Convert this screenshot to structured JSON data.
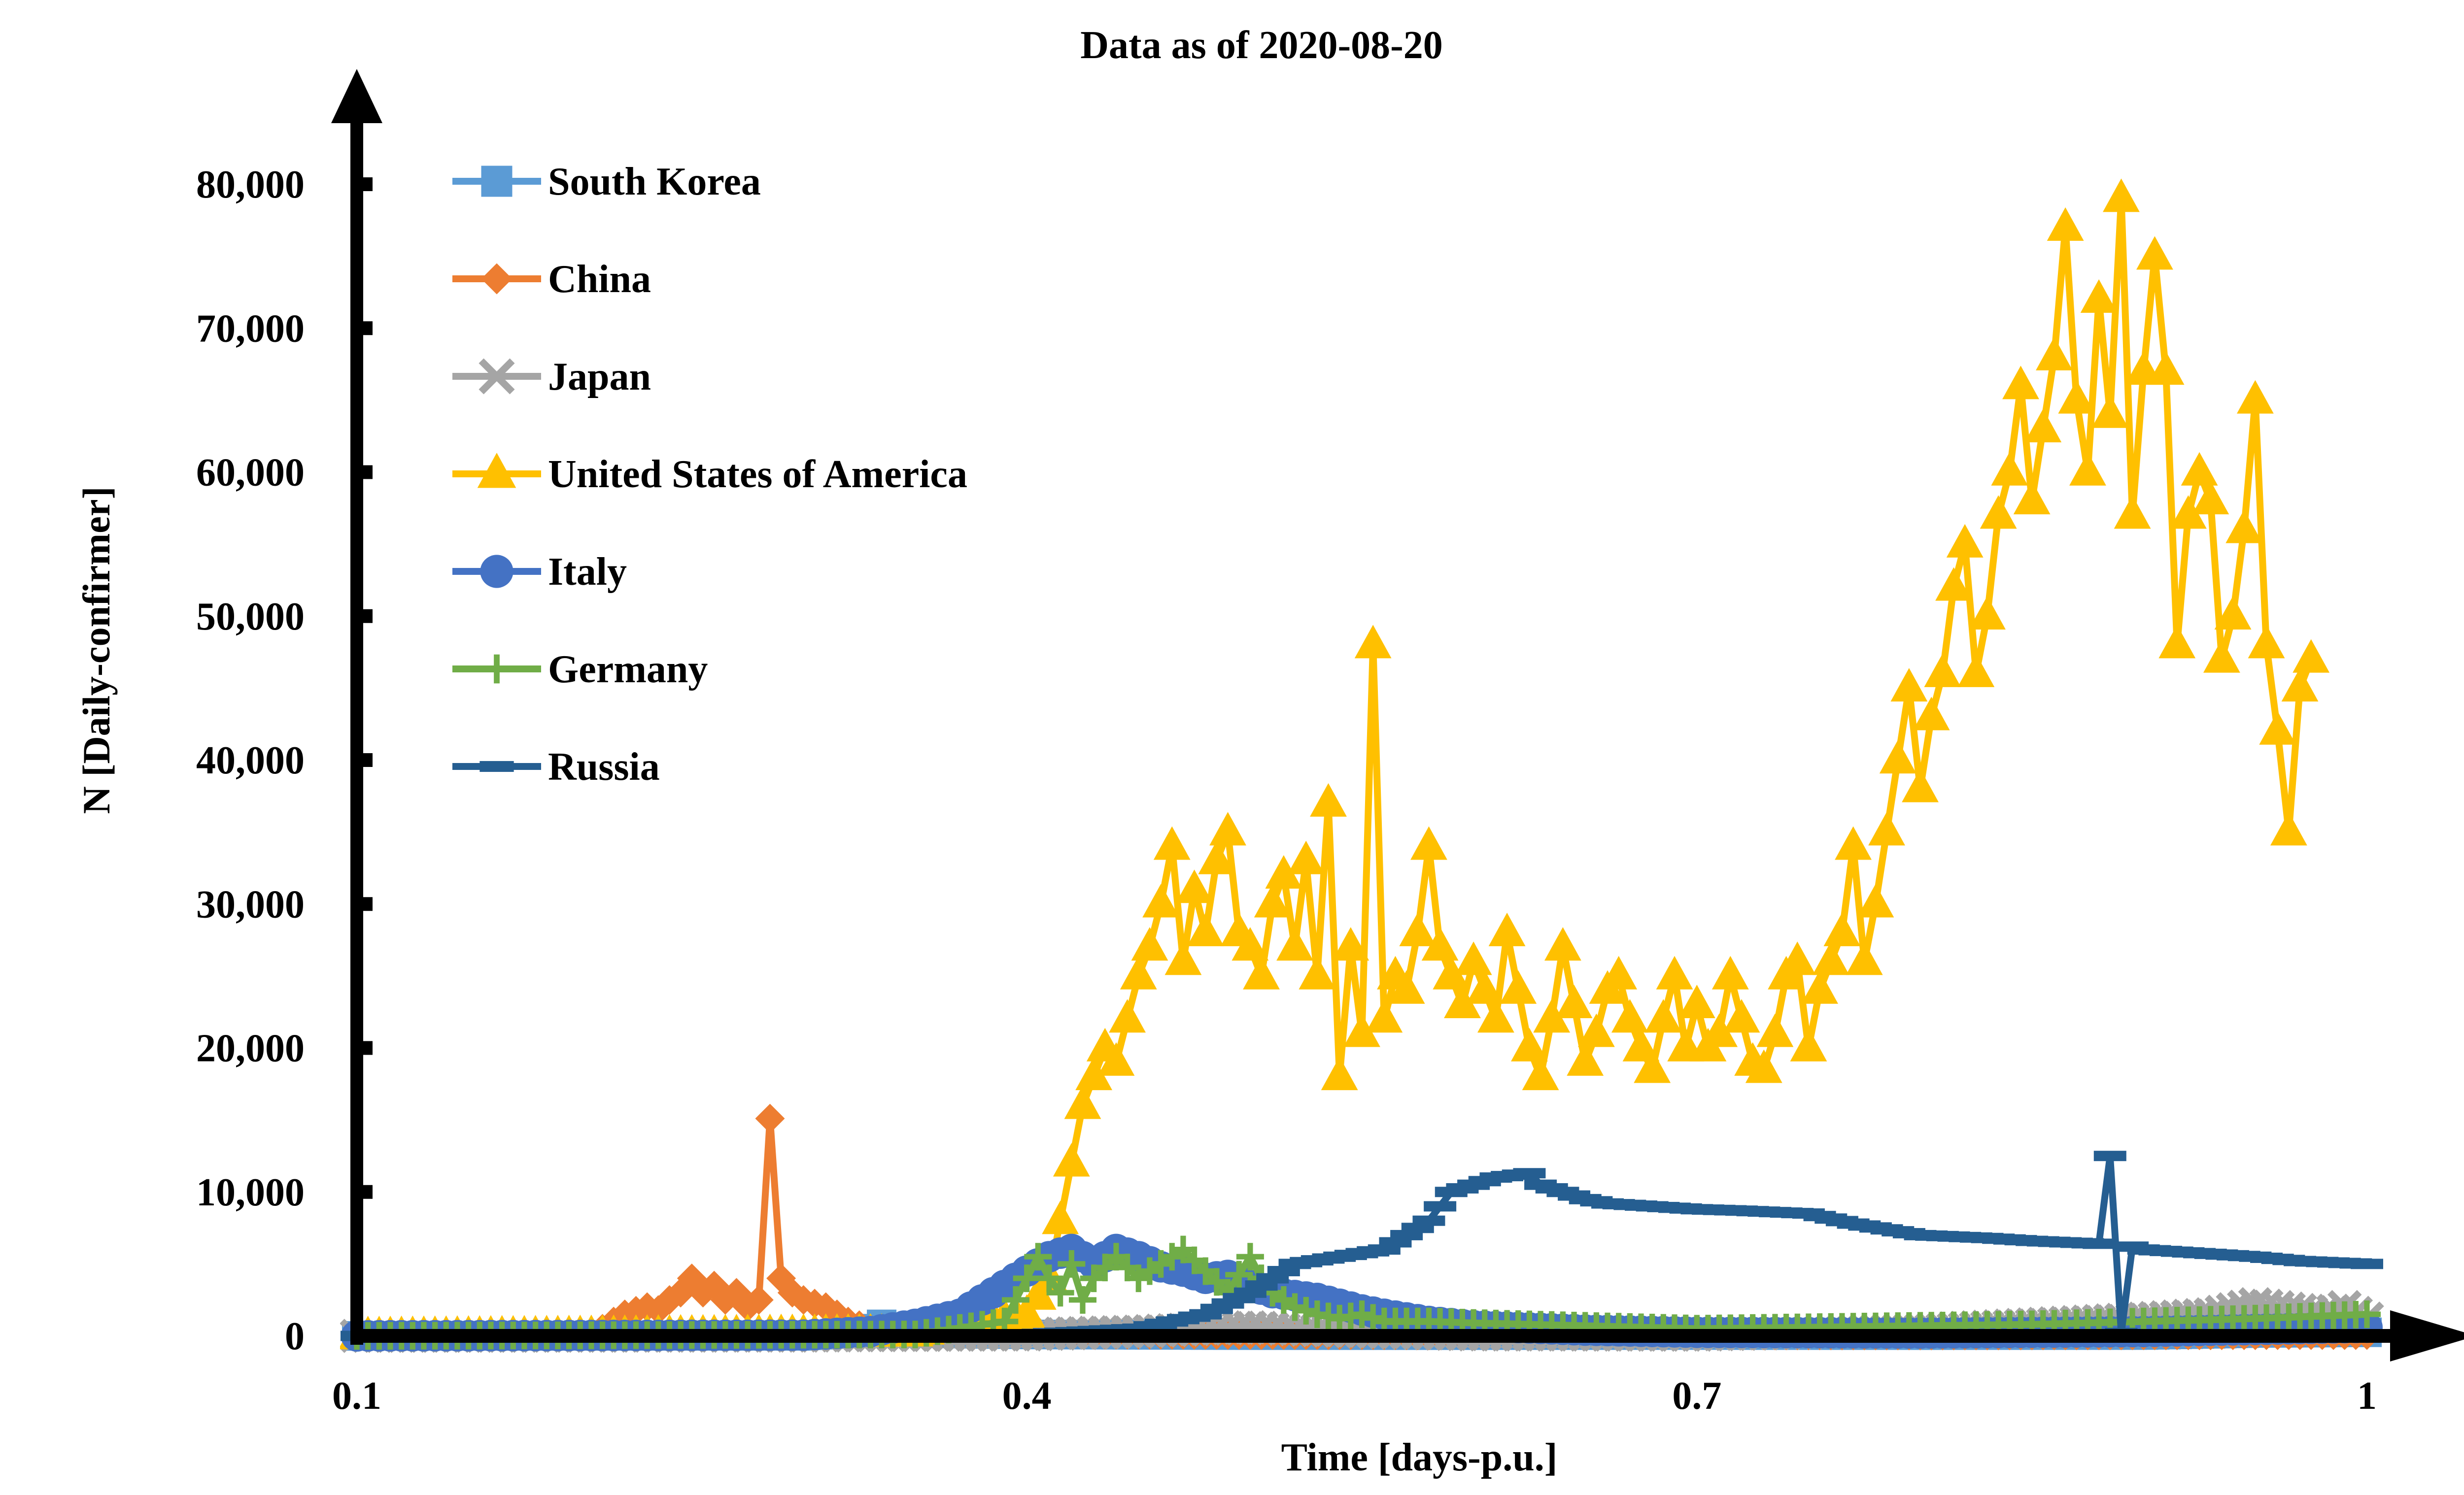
{
  "chart_data": {
    "type": "line",
    "title": "Data as of 2020-08-20",
    "xlabel": "Time [days-p.u.]",
    "ylabel": "N [Daily-confirmer]",
    "xlim": [
      0.1,
      1.0
    ],
    "ylim": [
      0,
      80000
    ],
    "x_ticks": [
      0.1,
      0.4,
      0.7,
      1.0
    ],
    "x_tick_labels": [
      "0.1",
      "0.4",
      "0.7",
      "1"
    ],
    "y_ticks": [
      0,
      10000,
      20000,
      30000,
      40000,
      50000,
      60000,
      70000,
      80000
    ],
    "y_tick_labels": [
      "0",
      "10,000",
      "20,000",
      "30,000",
      "40,000",
      "50,000",
      "60,000",
      "70,000",
      "80,000"
    ],
    "grid": false,
    "legend_position": "top-left",
    "series": [
      {
        "name": "South Korea",
        "color": "#5B9BD5",
        "marker": "square",
        "points": [
          [
            0.1,
            0
          ],
          [
            0.2,
            0
          ],
          [
            0.3,
            0
          ],
          [
            0.325,
            200
          ],
          [
            0.33,
            500
          ],
          [
            0.335,
            800
          ],
          [
            0.34,
            600
          ],
          [
            0.35,
            200
          ],
          [
            0.4,
            100
          ],
          [
            0.5,
            50
          ],
          [
            0.6,
            50
          ],
          [
            0.7,
            60
          ],
          [
            0.8,
            50
          ],
          [
            0.9,
            60
          ],
          [
            0.95,
            200
          ],
          [
            1.0,
            250
          ]
        ]
      },
      {
        "name": "China",
        "color": "#ED7D31",
        "marker": "diamond",
        "points": [
          [
            0.1,
            0
          ],
          [
            0.15,
            0
          ],
          [
            0.2,
            0
          ],
          [
            0.21,
            500
          ],
          [
            0.22,
            1500
          ],
          [
            0.23,
            2000
          ],
          [
            0.235,
            1800
          ],
          [
            0.24,
            2500
          ],
          [
            0.245,
            3000
          ],
          [
            0.25,
            4000
          ],
          [
            0.255,
            3000
          ],
          [
            0.26,
            3500
          ],
          [
            0.265,
            2500
          ],
          [
            0.27,
            3000
          ],
          [
            0.275,
            2000
          ],
          [
            0.28,
            2500
          ],
          [
            0.285,
            15100
          ],
          [
            0.29,
            4000
          ],
          [
            0.295,
            3000
          ],
          [
            0.3,
            2500
          ],
          [
            0.31,
            2000
          ],
          [
            0.32,
            1000
          ],
          [
            0.33,
            500
          ],
          [
            0.35,
            200
          ],
          [
            0.4,
            100
          ],
          [
            0.5,
            50
          ],
          [
            0.6,
            30
          ],
          [
            0.7,
            30
          ],
          [
            0.8,
            20
          ],
          [
            0.9,
            30
          ],
          [
            1.0,
            50
          ]
        ]
      },
      {
        "name": "Japan",
        "color": "#A5A5A5",
        "marker": "x",
        "points": [
          [
            0.1,
            0
          ],
          [
            0.3,
            20
          ],
          [
            0.4,
            100
          ],
          [
            0.45,
            300
          ],
          [
            0.48,
            500
          ],
          [
            0.5,
            600
          ],
          [
            0.53,
            400
          ],
          [
            0.55,
            300
          ],
          [
            0.6,
            100
          ],
          [
            0.7,
            80
          ],
          [
            0.8,
            400
          ],
          [
            0.85,
            800
          ],
          [
            0.9,
            1200
          ],
          [
            0.93,
            1500
          ],
          [
            0.95,
            2200
          ],
          [
            0.97,
            1800
          ],
          [
            0.98,
            1500
          ],
          [
            0.99,
            2000
          ],
          [
            1.0,
            1200
          ]
        ]
      },
      {
        "name": "United States of America",
        "color": "#FFC000",
        "marker": "triangle",
        "points": [
          [
            0.1,
            0
          ],
          [
            0.35,
            200
          ],
          [
            0.4,
            1500
          ],
          [
            0.41,
            4000
          ],
          [
            0.415,
            8000
          ],
          [
            0.42,
            12000
          ],
          [
            0.425,
            16000
          ],
          [
            0.43,
            18000
          ],
          [
            0.435,
            20000
          ],
          [
            0.44,
            19000
          ],
          [
            0.445,
            22000
          ],
          [
            0.45,
            25000
          ],
          [
            0.455,
            27000
          ],
          [
            0.46,
            30000
          ],
          [
            0.465,
            34000
          ],
          [
            0.47,
            26000
          ],
          [
            0.475,
            31000
          ],
          [
            0.48,
            28000
          ],
          [
            0.485,
            33000
          ],
          [
            0.49,
            35000
          ],
          [
            0.495,
            28000
          ],
          [
            0.5,
            27000
          ],
          [
            0.505,
            25000
          ],
          [
            0.51,
            30000
          ],
          [
            0.515,
            32000
          ],
          [
            0.52,
            27000
          ],
          [
            0.525,
            33000
          ],
          [
            0.53,
            25000
          ],
          [
            0.535,
            37000
          ],
          [
            0.54,
            18000
          ],
          [
            0.545,
            27000
          ],
          [
            0.55,
            21000
          ],
          [
            0.555,
            48000
          ],
          [
            0.56,
            22000
          ],
          [
            0.565,
            25000
          ],
          [
            0.57,
            24000
          ],
          [
            0.575,
            28000
          ],
          [
            0.58,
            34000
          ],
          [
            0.585,
            27000
          ],
          [
            0.59,
            25000
          ],
          [
            0.595,
            23000
          ],
          [
            0.6,
            26000
          ],
          [
            0.605,
            24000
          ],
          [
            0.61,
            22000
          ],
          [
            0.615,
            28000
          ],
          [
            0.62,
            24000
          ],
          [
            0.625,
            20000
          ],
          [
            0.63,
            18000
          ],
          [
            0.635,
            22000
          ],
          [
            0.64,
            27000
          ],
          [
            0.645,
            23000
          ],
          [
            0.65,
            19000
          ],
          [
            0.655,
            21000
          ],
          [
            0.66,
            24000
          ],
          [
            0.665,
            25000
          ],
          [
            0.67,
            22000
          ],
          [
            0.675,
            20000
          ],
          [
            0.68,
            18500
          ],
          [
            0.685,
            22000
          ],
          [
            0.69,
            25000
          ],
          [
            0.695,
            20000
          ],
          [
            0.7,
            23000
          ],
          [
            0.705,
            20000
          ],
          [
            0.71,
            21000
          ],
          [
            0.715,
            25000
          ],
          [
            0.72,
            22000
          ],
          [
            0.725,
            19000
          ],
          [
            0.73,
            18500
          ],
          [
            0.735,
            21000
          ],
          [
            0.74,
            25000
          ],
          [
            0.745,
            26000
          ],
          [
            0.75,
            20000
          ],
          [
            0.755,
            24000
          ],
          [
            0.76,
            26000
          ],
          [
            0.765,
            28000
          ],
          [
            0.77,
            34000
          ],
          [
            0.775,
            26000
          ],
          [
            0.78,
            30000
          ],
          [
            0.785,
            35000
          ],
          [
            0.79,
            40000
          ],
          [
            0.795,
            45000
          ],
          [
            0.8,
            38000
          ],
          [
            0.805,
            43000
          ],
          [
            0.81,
            46000
          ],
          [
            0.815,
            52000
          ],
          [
            0.82,
            55000
          ],
          [
            0.825,
            46000
          ],
          [
            0.83,
            50000
          ],
          [
            0.835,
            57000
          ],
          [
            0.84,
            60000
          ],
          [
            0.845,
            66000
          ],
          [
            0.85,
            58000
          ],
          [
            0.855,
            63000
          ],
          [
            0.86,
            68000
          ],
          [
            0.865,
            77000
          ],
          [
            0.87,
            65000
          ],
          [
            0.875,
            60000
          ],
          [
            0.88,
            72000
          ],
          [
            0.885,
            64000
          ],
          [
            0.89,
            79000
          ],
          [
            0.895,
            57000
          ],
          [
            0.9,
            67000
          ],
          [
            0.905,
            75000
          ],
          [
            0.91,
            67000
          ],
          [
            0.915,
            48000
          ],
          [
            0.92,
            57000
          ],
          [
            0.925,
            60000
          ],
          [
            0.93,
            58000
          ],
          [
            0.935,
            47000
          ],
          [
            0.94,
            50000
          ],
          [
            0.945,
            56000
          ],
          [
            0.95,
            65000
          ],
          [
            0.955,
            48000
          ],
          [
            0.96,
            42000
          ],
          [
            0.965,
            35000
          ],
          [
            0.97,
            45000
          ],
          [
            0.975,
            47000
          ]
        ]
      },
      {
        "name": "Italy",
        "color": "#4472C4",
        "marker": "circle",
        "points": [
          [
            0.1,
            0
          ],
          [
            0.3,
            50
          ],
          [
            0.33,
            300
          ],
          [
            0.35,
            800
          ],
          [
            0.37,
            1500
          ],
          [
            0.38,
            2500
          ],
          [
            0.39,
            3500
          ],
          [
            0.4,
            4500
          ],
          [
            0.41,
            5500
          ],
          [
            0.42,
            6000
          ],
          [
            0.43,
            5000
          ],
          [
            0.44,
            6000
          ],
          [
            0.45,
            5500
          ],
          [
            0.46,
            4800
          ],
          [
            0.47,
            4500
          ],
          [
            0.48,
            4000
          ],
          [
            0.49,
            4200
          ],
          [
            0.5,
            3500
          ],
          [
            0.51,
            3000
          ],
          [
            0.52,
            2800
          ],
          [
            0.53,
            2600
          ],
          [
            0.54,
            2200
          ],
          [
            0.55,
            1800
          ],
          [
            0.56,
            1500
          ],
          [
            0.58,
            1000
          ],
          [
            0.6,
            700
          ],
          [
            0.65,
            400
          ],
          [
            0.7,
            250
          ],
          [
            0.8,
            200
          ],
          [
            0.9,
            300
          ],
          [
            1.0,
            600
          ]
        ]
      },
      {
        "name": "Germany",
        "color": "#70AD47",
        "marker": "plus",
        "points": [
          [
            0.1,
            0
          ],
          [
            0.35,
            100
          ],
          [
            0.39,
            1000
          ],
          [
            0.405,
            5500
          ],
          [
            0.41,
            4000
          ],
          [
            0.415,
            3000
          ],
          [
            0.42,
            5000
          ],
          [
            0.425,
            2500
          ],
          [
            0.43,
            4000
          ],
          [
            0.44,
            5500
          ],
          [
            0.45,
            4000
          ],
          [
            0.46,
            5000
          ],
          [
            0.47,
            6000
          ],
          [
            0.48,
            4500
          ],
          [
            0.49,
            3000
          ],
          [
            0.5,
            5500
          ],
          [
            0.505,
            4000
          ],
          [
            0.51,
            3000
          ],
          [
            0.52,
            2000
          ],
          [
            0.53,
            1500
          ],
          [
            0.54,
            1200
          ],
          [
            0.55,
            1500
          ],
          [
            0.56,
            1000
          ],
          [
            0.58,
            1000
          ],
          [
            0.6,
            900
          ],
          [
            0.65,
            700
          ],
          [
            0.7,
            500
          ],
          [
            0.75,
            600
          ],
          [
            0.8,
            700
          ],
          [
            0.85,
            800
          ],
          [
            0.9,
            1000
          ],
          [
            0.95,
            1200
          ],
          [
            1.0,
            1500
          ]
        ]
      },
      {
        "name": "Russia",
        "color": "#255E91",
        "marker": "dash",
        "points": [
          [
            0.1,
            0
          ],
          [
            0.35,
            0
          ],
          [
            0.4,
            100
          ],
          [
            0.45,
            500
          ],
          [
            0.48,
            1500
          ],
          [
            0.5,
            3000
          ],
          [
            0.52,
            5000
          ],
          [
            0.54,
            5500
          ],
          [
            0.56,
            6000
          ],
          [
            0.57,
            7000
          ],
          [
            0.58,
            8000
          ],
          [
            0.59,
            10000
          ],
          [
            0.6,
            10500
          ],
          [
            0.61,
            11000
          ],
          [
            0.62,
            11200
          ],
          [
            0.625,
            11300
          ],
          [
            0.63,
            10500
          ],
          [
            0.64,
            10000
          ],
          [
            0.65,
            9500
          ],
          [
            0.66,
            9200
          ],
          [
            0.68,
            9000
          ],
          [
            0.7,
            8800
          ],
          [
            0.72,
            8700
          ],
          [
            0.75,
            8500
          ],
          [
            0.77,
            7800
          ],
          [
            0.8,
            7000
          ],
          [
            0.83,
            6800
          ],
          [
            0.85,
            6600
          ],
          [
            0.88,
            6400
          ],
          [
            0.885,
            12500
          ],
          [
            0.89,
            200
          ],
          [
            0.895,
            6200
          ],
          [
            0.9,
            6000
          ],
          [
            0.92,
            5800
          ],
          [
            0.95,
            5500
          ],
          [
            0.97,
            5200
          ],
          [
            1.0,
            5000
          ]
        ]
      }
    ]
  }
}
